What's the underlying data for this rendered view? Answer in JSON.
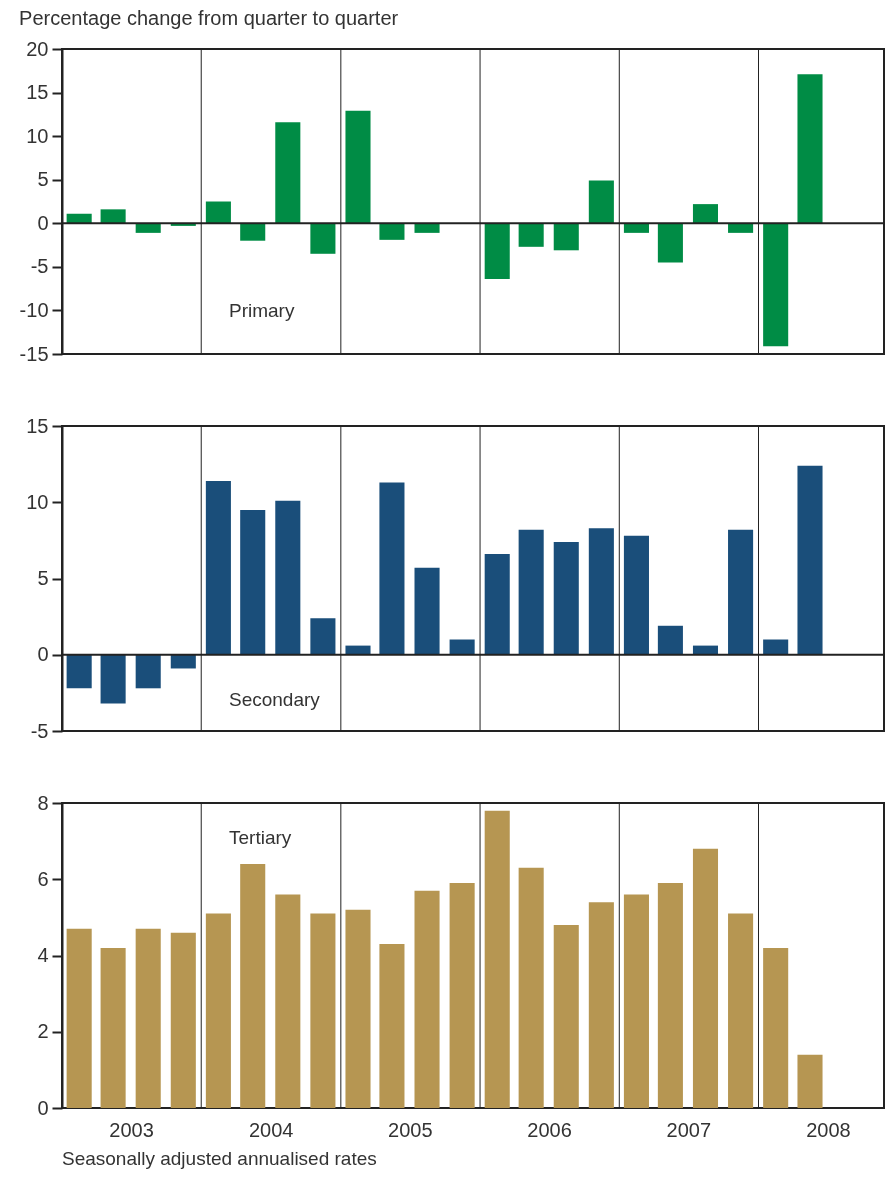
{
  "chart_data": [
    {
      "type": "bar",
      "title": "Percentage change from quarter to quarter",
      "x": [
        "2003-02-15",
        "2003-05-15",
        "2003-08-15",
        "2003-11-15",
        "2004-02-15",
        "2004-05-15",
        "2004-08-15",
        "2004-11-15",
        "2005-02-15",
        "2005-05-15",
        "2005-08-15",
        "2005-11-15",
        "2006-02-15",
        "2006-05-15",
        "2006-08-15",
        "2006-11-15",
        "2007-02-15",
        "2007-05-15",
        "2007-08-15",
        "2007-11-15",
        "2008-02-15",
        "2008-05-15"
      ],
      "series": [
        {
          "name": "Primary",
          "color": "#008c45",
          "values": [
            1.1,
            1.6,
            -1.1,
            -0.3,
            2.5,
            -2.0,
            11.6,
            -3.5,
            12.9,
            -1.9,
            -1.1,
            0,
            -6.4,
            -2.7,
            -3.1,
            4.9,
            -1.1,
            -4.5,
            2.2,
            -1.1,
            -14.1,
            17.1
          ]
        }
      ],
      "xlim": [
        "2003-01-01",
        "2008-11-25"
      ],
      "ylim": [
        -15,
        20
      ],
      "yticks": [
        -15,
        -10,
        -5,
        0,
        5,
        10,
        15,
        20
      ],
      "tick_labels": "y",
      "grid": false,
      "ref_lines": [
        {
          "axis": "y",
          "value": 0
        },
        {
          "axis": "x",
          "value": "2004-01-01"
        },
        {
          "axis": "x",
          "value": "2005-01-01"
        },
        {
          "axis": "x",
          "value": "2006-01-01"
        },
        {
          "axis": "x",
          "value": "2007-01-01"
        },
        {
          "axis": "x",
          "value": "2008-01-01"
        }
      ]
    },
    {
      "type": "bar",
      "x": [
        "2003-02-15",
        "2003-05-15",
        "2003-08-15",
        "2003-11-15",
        "2004-02-15",
        "2004-05-15",
        "2004-08-15",
        "2004-11-15",
        "2005-02-15",
        "2005-05-15",
        "2005-08-15",
        "2005-11-15",
        "2006-02-15",
        "2006-05-15",
        "2006-08-15",
        "2006-11-15",
        "2007-02-15",
        "2007-05-15",
        "2007-08-15",
        "2007-11-15",
        "2008-02-15",
        "2008-05-15"
      ],
      "series": [
        {
          "name": "Secondary",
          "color": "#1a4e7a",
          "values": [
            -2.2,
            -3.2,
            -2.2,
            -0.9,
            11.4,
            9.5,
            10.1,
            2.4,
            0.6,
            11.3,
            5.7,
            1.0,
            6.6,
            8.2,
            7.4,
            8.3,
            7.8,
            1.9,
            0.6,
            8.2,
            1.0,
            12.4
          ]
        }
      ],
      "xlim": [
        "2003-01-01",
        "2008-11-25"
      ],
      "ylim": [
        -5,
        15
      ],
      "yticks": [
        -5,
        0,
        5,
        10,
        15
      ],
      "tick_labels": "y",
      "grid": false,
      "ref_lines": [
        {
          "axis": "y",
          "value": 0
        },
        {
          "axis": "x",
          "value": "2004-01-01"
        },
        {
          "axis": "x",
          "value": "2005-01-01"
        },
        {
          "axis": "x",
          "value": "2006-01-01"
        },
        {
          "axis": "x",
          "value": "2007-01-01"
        },
        {
          "axis": "x",
          "value": "2008-01-01"
        }
      ]
    },
    {
      "type": "bar",
      "annotations": [
        "Seasonally adjusted annualised rates"
      ],
      "x": [
        "2003-02-15",
        "2003-05-15",
        "2003-08-15",
        "2003-11-15",
        "2004-02-15",
        "2004-05-15",
        "2004-08-15",
        "2004-11-15",
        "2005-02-15",
        "2005-05-15",
        "2005-08-15",
        "2005-11-15",
        "2006-02-15",
        "2006-05-15",
        "2006-08-15",
        "2006-11-15",
        "2007-02-15",
        "2007-05-15",
        "2007-08-15",
        "2007-11-15",
        "2008-02-15",
        "2008-05-15"
      ],
      "series": [
        {
          "name": "Tertiary",
          "color": "#b69652",
          "values": [
            4.7,
            4.2,
            4.7,
            4.6,
            5.1,
            6.4,
            5.6,
            5.1,
            5.2,
            4.3,
            5.7,
            5.9,
            7.8,
            6.3,
            4.8,
            5.4,
            5.6,
            5.9,
            6.8,
            5.1,
            4.2,
            1.4
          ]
        }
      ],
      "xlim": [
        "2003-01-01",
        "2008-11-25"
      ],
      "xticks": [
        {
          "value": "2003-07-01",
          "label": "2003"
        },
        {
          "value": "2004-07-01",
          "label": "2004"
        },
        {
          "value": "2005-07-01",
          "label": "2005"
        },
        {
          "value": "2006-07-01",
          "label": "2006"
        },
        {
          "value": "2007-07-01",
          "label": "2007"
        },
        {
          "value": "2008-07-01",
          "label": "2008"
        }
      ],
      "ylim": [
        0,
        8
      ],
      "yticks": [
        0,
        2,
        4,
        6,
        8
      ],
      "grid": false,
      "ref_lines": [
        {
          "axis": "x",
          "value": "2004-01-01"
        },
        {
          "axis": "x",
          "value": "2005-01-01"
        },
        {
          "axis": "x",
          "value": "2006-01-01"
        },
        {
          "axis": "x",
          "value": "2007-01-01"
        },
        {
          "axis": "x",
          "value": "2008-01-01"
        }
      ]
    }
  ]
}
